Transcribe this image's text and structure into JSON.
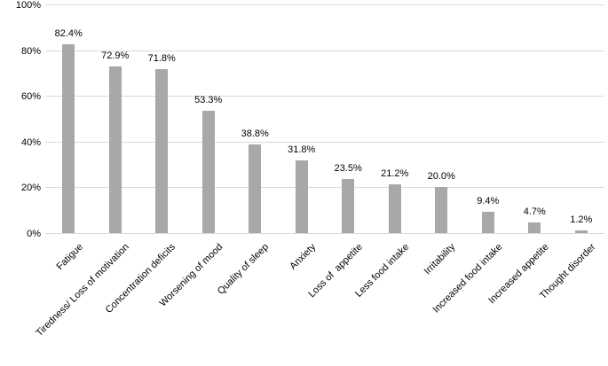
{
  "chart_data": {
    "type": "bar",
    "title": "",
    "xlabel": "",
    "ylabel": "",
    "categories": [
      "Fatigue",
      "Tiredness/ Loss of motivation",
      "Concentration deficits",
      "Worsening of mood",
      "Quality of sleep",
      "Anxiety",
      "Loss of  appetite",
      "Less food intake",
      "Irritability",
      "Increased food intake",
      "Increased appetite",
      "Thought disorder"
    ],
    "values": [
      82.4,
      72.9,
      71.8,
      53.3,
      38.8,
      31.8,
      23.5,
      21.2,
      20.0,
      9.4,
      4.7,
      1.2
    ],
    "data_labels": [
      "82.4%",
      "72.9%",
      "71.8%",
      "53.3%",
      "38.8%",
      "31.8%",
      "23.5%",
      "21.2%",
      "20.0%",
      "9.4%",
      "4.7%",
      "1.2%"
    ],
    "y_ticks": [
      "0%",
      "20%",
      "40%",
      "60%",
      "80%",
      "100%"
    ],
    "ylim": [
      0,
      100
    ],
    "grid": true,
    "legend": false,
    "colors": {
      "bar": "#a8a8a8",
      "gridline": "#d9d9d9",
      "axis_line": "#d9d9d9",
      "text": "#000000",
      "background": "#ffffff"
    }
  }
}
